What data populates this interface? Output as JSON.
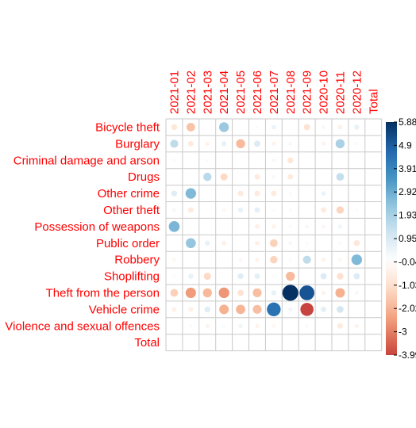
{
  "chart_data": {
    "type": "heatmap",
    "subtype": "correlation-circle-plot",
    "columns": [
      "2021-01",
      "2021-02",
      "2021-03",
      "2021-04",
      "2021-05",
      "2021-06",
      "2021-07",
      "2021-08",
      "2021-09",
      "2020-10",
      "2020-11",
      "2020-12",
      "Total"
    ],
    "rows": [
      "Bicycle theft",
      "Burglary",
      "Criminal damage and arson",
      "Drugs",
      "Other crime",
      "Other theft",
      "Possession of weapons",
      "Public order",
      "Robbery",
      "Shoplifting",
      "Theft from the person",
      "Vehicle crime",
      "Violence and sexual offences",
      "Total"
    ],
    "values": [
      [
        -0.8,
        -1.7,
        -0.1,
        2.2,
        -0.1,
        -0.2,
        0.5,
        -0.1,
        -0.9,
        0.3,
        -0.5,
        0.6,
        null
      ],
      [
        1.5,
        -0.7,
        -0.4,
        0.6,
        -1.9,
        0.9,
        -0.4,
        -0.3,
        0.1,
        -0.4,
        1.9,
        0.2,
        null
      ],
      [
        -0.2,
        -0.1,
        0.2,
        -0.1,
        0.1,
        -0.1,
        0.3,
        -0.8,
        null,
        null,
        0.1,
        null,
        null
      ],
      [
        0.1,
        null,
        1.6,
        -1.2,
        0.1,
        -0.7,
        0.3,
        -0.7,
        null,
        null,
        1.4,
        null,
        null
      ],
      [
        0.8,
        2.6,
        0.1,
        0.1,
        -0.7,
        -0.7,
        -0.7,
        -0.2,
        -0.1,
        0.5,
        -0.1,
        0.1,
        null
      ],
      [
        0.3,
        -0.7,
        0.1,
        -0.3,
        0.6,
        0.7,
        -0.2,
        -0.2,
        null,
        -0.7,
        -1.3,
        -0.2,
        null
      ],
      [
        2.7,
        -0.1,
        0.1,
        -0.1,
        0.1,
        -0.5,
        -0.4,
        0.2,
        0.3,
        -0.3,
        0.4,
        -0.1,
        null
      ],
      [
        null,
        2.3,
        0.6,
        -0.5,
        0.1,
        -0.5,
        -1.4,
        0.3,
        0.2,
        -0.1,
        0.2,
        -0.8,
        null
      ],
      [
        -0.3,
        null,
        -0.1,
        null,
        -0.3,
        -0.4,
        -1.3,
        -0.2,
        1.5,
        -0.4,
        -0.3,
        2.6,
        null
      ],
      [
        0.2,
        0.6,
        -1.2,
        0.1,
        0.8,
        0.7,
        0.2,
        -1.9,
        0.1,
        0.9,
        -1.0,
        0.9,
        null
      ],
      [
        -1.4,
        -2.5,
        -1.9,
        -2.6,
        -0.9,
        -1.8,
        0.6,
        5.88,
        5.1,
        -0.4,
        -2.1,
        0.3,
        null
      ],
      [
        -0.5,
        -0.5,
        0.8,
        -2.1,
        -2.0,
        -1.8,
        4.4,
        0.4,
        -3.99,
        0.7,
        1.1,
        0.1,
        null
      ],
      [
        -0.1,
        0.2,
        -0.4,
        0.2,
        0.4,
        -0.4,
        -0.3,
        -0.1,
        0.2,
        -0.1,
        -0.7,
        -0.4,
        null
      ],
      [
        null,
        null,
        null,
        null,
        null,
        null,
        null,
        null,
        null,
        null,
        null,
        null,
        null
      ]
    ],
    "color_scale": {
      "min": -3.99,
      "max": 5.88,
      "ticks": [
        "5.88",
        "4.9",
        "3.91",
        "2.92",
        "1.93",
        "0.95",
        "-0.04",
        "-1.03",
        "-2.02",
        "-3",
        "-3.99"
      ],
      "colors": [
        "#67001f",
        "#b2182b",
        "#d6604d",
        "#f4a582",
        "#fddbc7",
        "#ffffff",
        "#d1e5f0",
        "#92c5de",
        "#4393c3",
        "#2166ac",
        "#053061"
      ]
    },
    "grid": true,
    "legend_placement": "right"
  }
}
